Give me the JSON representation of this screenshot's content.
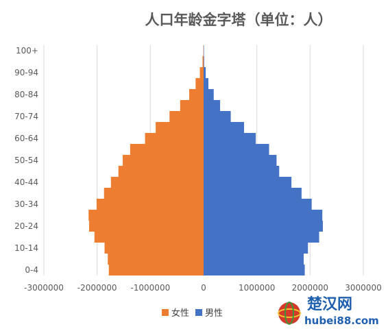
{
  "chart_data": {
    "type": "bar",
    "orientation": "horizontal",
    "title": "人口年龄金字塔（单位：人）",
    "categories": [
      "0-4",
      "5-9",
      "10-14",
      "15-19",
      "20-24",
      "25-29",
      "30-34",
      "35-39",
      "40-44",
      "45-49",
      "50-54",
      "55-59",
      "60-64",
      "65-69",
      "70-74",
      "75-79",
      "80-84",
      "85-89",
      "90-94",
      "95-99",
      "100+"
    ],
    "category_tick_labels": [
      "0-4",
      "",
      "10-14",
      "",
      "20-24",
      "",
      "30-34",
      "",
      "40-44",
      "",
      "50-54",
      "",
      "60-64",
      "",
      "70-74",
      "",
      "80-84",
      "",
      "90-94",
      "",
      "100+"
    ],
    "series": [
      {
        "name": "女性",
        "color": "#ed7d31",
        "values": [
          -1780000,
          -1800000,
          -1860000,
          -2050000,
          -2150000,
          -2160000,
          -2010000,
          -1870000,
          -1740000,
          -1600000,
          -1520000,
          -1380000,
          -1100000,
          -900000,
          -640000,
          -440000,
          -270000,
          -150000,
          -70000,
          -20000,
          -5000
        ]
      },
      {
        "name": "男性",
        "color": "#4472c4",
        "values": [
          1900000,
          1880000,
          1960000,
          2170000,
          2240000,
          2230000,
          2030000,
          1840000,
          1650000,
          1420000,
          1370000,
          1230000,
          980000,
          760000,
          510000,
          310000,
          190000,
          90000,
          40000,
          10000,
          2000
        ]
      }
    ],
    "xlim": [
      -3000000,
      3000000
    ],
    "x_ticks": [
      -3000000,
      -2000000,
      -1000000,
      0,
      1000000,
      2000000,
      3000000
    ],
    "x_tick_labels": [
      "-3000000",
      "-2000000",
      "-1000000",
      "0",
      "1000000",
      "2000000",
      "3000000"
    ],
    "grid": "vertical",
    "legend": "bottom-center"
  },
  "watermark": {
    "name_cn": "楚汉网",
    "url": "hubei88.com"
  }
}
